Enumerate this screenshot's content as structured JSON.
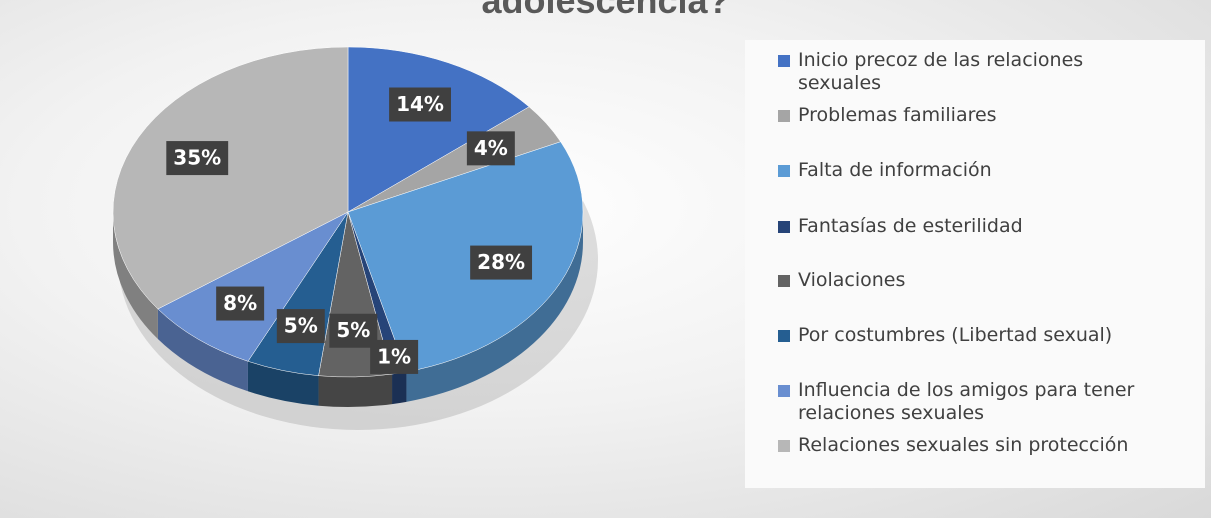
{
  "chart_data": {
    "type": "pie",
    "title": "adolescencia?",
    "categories": [
      "Inicio precoz de las relaciones sexuales",
      "Problemas familiares",
      "Falta de información",
      "Fantasías de esterilidad",
      "Violaciones",
      "Por costumbres (Libertad sexual)",
      "Influencia de los amigos para tener relaciones sexuales",
      "Relaciones sexuales sin protección"
    ],
    "values": [
      14,
      4,
      28,
      1,
      5,
      5,
      8,
      35
    ],
    "value_labels": [
      "14%",
      "4%",
      "28%",
      "1%",
      "5%",
      "5%",
      "8%",
      "35%"
    ],
    "colors": [
      "#4472c4",
      "#a5a5a5",
      "#5b9bd5",
      "#264478",
      "#636363",
      "#255e91",
      "#698ed0",
      "#b7b7b7"
    ],
    "legend": "right"
  }
}
